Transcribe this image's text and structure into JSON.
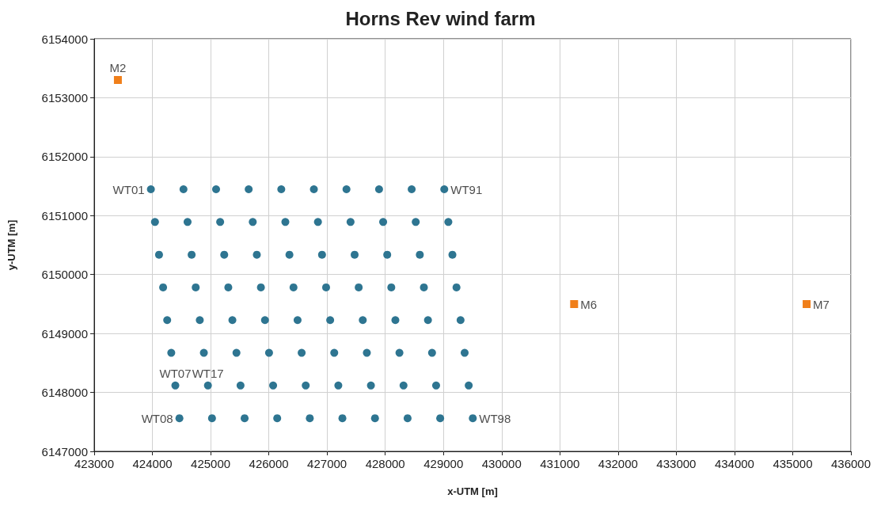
{
  "chart_data": {
    "type": "scatter",
    "title": "Horns Rev wind farm",
    "xlabel": "x-UTM [m]",
    "ylabel": "y-UTM [m]",
    "xlim": [
      423000,
      436000
    ],
    "xticks": [
      423000,
      424000,
      425000,
      426000,
      427000,
      428000,
      429000,
      430000,
      431000,
      432000,
      433000,
      434000,
      435000,
      436000
    ],
    "ylim": [
      6147000,
      6154000
    ],
    "yticks": [
      6147000,
      6148000,
      6149000,
      6150000,
      6151000,
      6152000,
      6153000,
      6154000
    ],
    "grid": true,
    "series": [
      {
        "color": "#2e7591",
        "marker": "circle",
        "x": [
          423974,
          424534,
          425094,
          425654,
          426214,
          426774,
          427334,
          427894,
          428454,
          429014,
          424044,
          424604,
          425164,
          425724,
          426284,
          426844,
          427404,
          427964,
          428524,
          429084,
          424114,
          424674,
          425234,
          425794,
          426354,
          426914,
          427474,
          428034,
          428594,
          429154,
          424184,
          424744,
          425304,
          425864,
          426424,
          426984,
          427544,
          428104,
          428664,
          429224,
          424254,
          424814,
          425374,
          425934,
          426494,
          427054,
          427614,
          428174,
          428734,
          429294,
          424324,
          424884,
          425444,
          426004,
          426564,
          427124,
          427684,
          428244,
          428804,
          429364,
          424394,
          424954,
          425514,
          426074,
          426634,
          427194,
          427754,
          428314,
          428874,
          429434,
          424464,
          425024,
          425584,
          426144,
          426704,
          427264,
          427824,
          428384,
          428944,
          429504
        ],
        "values": [
          6151447,
          6151447,
          6151447,
          6151447,
          6151447,
          6151447,
          6151447,
          6151447,
          6151447,
          6151447,
          6150892,
          6150892,
          6150892,
          6150892,
          6150892,
          6150892,
          6150892,
          6150892,
          6150892,
          6150892,
          6150337,
          6150337,
          6150337,
          6150337,
          6150337,
          6150337,
          6150337,
          6150337,
          6150337,
          6150337,
          6149782,
          6149782,
          6149782,
          6149782,
          6149782,
          6149782,
          6149782,
          6149782,
          6149782,
          6149782,
          6149227,
          6149227,
          6149227,
          6149227,
          6149227,
          6149227,
          6149227,
          6149227,
          6149227,
          6149227,
          6148672,
          6148672,
          6148672,
          6148672,
          6148672,
          6148672,
          6148672,
          6148672,
          6148672,
          6148672,
          6148117,
          6148117,
          6148117,
          6148117,
          6148117,
          6148117,
          6148117,
          6148117,
          6148117,
          6148117,
          6147562,
          6147562,
          6147562,
          6147562,
          6147562,
          6147562,
          6147562,
          6147562,
          6147562,
          6147562
        ]
      },
      {
        "color": "#f07f1a",
        "marker": "square",
        "x": [
          423407,
          431245,
          435239
        ],
        "values": [
          6153301,
          6149499,
          6149499
        ]
      }
    ],
    "annotations": [
      {
        "text": "WT01",
        "x": 423974,
        "y": 6151447
      },
      {
        "text": "WT91",
        "x": 429014,
        "y": 6151447
      },
      {
        "text": "WT07",
        "x": 424394,
        "y": 6148117
      },
      {
        "text": "WT17",
        "x": 424954,
        "y": 6148117
      },
      {
        "text": "WT08",
        "x": 424464,
        "y": 6147562
      },
      {
        "text": "WT98",
        "x": 429504,
        "y": 6147562
      },
      {
        "text": "M2",
        "x": 423407,
        "y": 6153301
      },
      {
        "text": "M6",
        "x": 431245,
        "y": 6149499
      },
      {
        "text": "M7",
        "x": 435239,
        "y": 6149499
      }
    ]
  }
}
